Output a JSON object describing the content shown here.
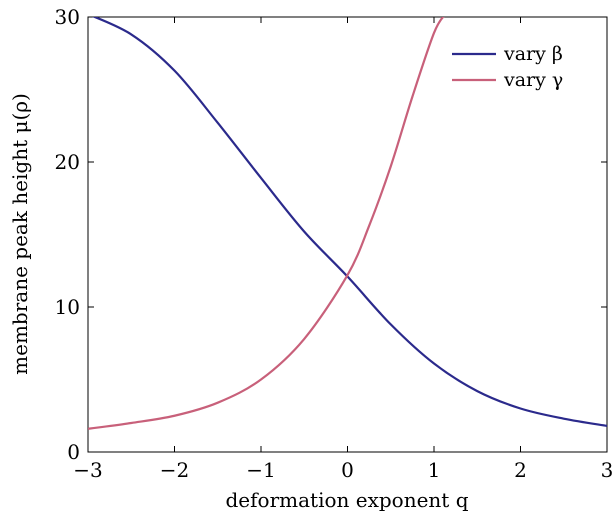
{
  "chart_data": {
    "type": "line",
    "xlabel": "deformation exponent q",
    "ylabel": "membrane peak height μ(ρ)",
    "xlim": [
      -3,
      3
    ],
    "ylim": [
      0,
      30
    ],
    "xticks": [
      -3,
      -2,
      -1,
      0,
      1,
      2,
      3
    ],
    "xtick_labels": [
      "−3",
      "−2",
      "−1",
      "0",
      "1",
      "2",
      "3"
    ],
    "yticks": [
      0,
      10,
      20,
      30
    ],
    "ytick_labels": [
      "0",
      "10",
      "20",
      "30"
    ],
    "grid": false,
    "legend_position": "top-right",
    "series": [
      {
        "name": "vary β",
        "color": "#2b2a8c",
        "x": [
          -3,
          -2.5,
          -2,
          -1.5,
          -1,
          -0.5,
          0,
          0.5,
          1,
          1.5,
          2,
          2.5,
          3
        ],
        "y": [
          30.2,
          28.8,
          26.3,
          22.7,
          18.9,
          15.2,
          12.1,
          8.8,
          6.1,
          4.2,
          3.0,
          2.3,
          1.8
        ]
      },
      {
        "name": "vary γ",
        "color": "#c8607a",
        "x": [
          -3,
          -2.5,
          -2,
          -1.5,
          -1,
          -0.5,
          0,
          0.25,
          0.5,
          0.75,
          1.0,
          1.13
        ],
        "y": [
          1.6,
          2.0,
          2.5,
          3.4,
          5.0,
          7.8,
          12.2,
          15.6,
          19.7,
          24.5,
          28.9,
          30.2
        ]
      }
    ]
  }
}
